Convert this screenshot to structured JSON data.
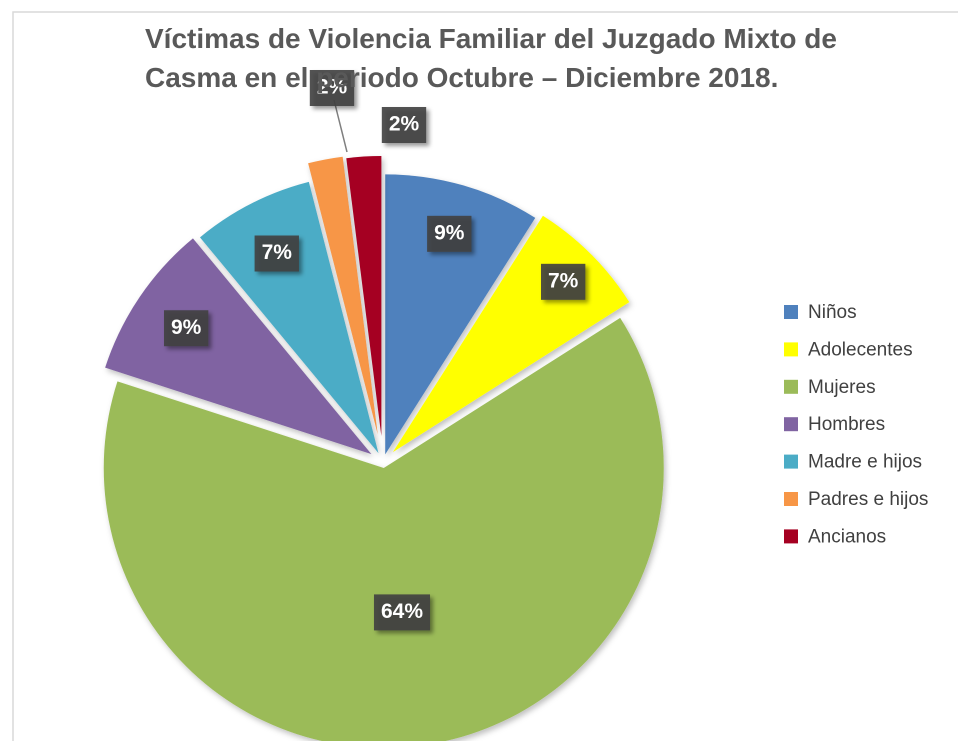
{
  "chart_data": {
    "type": "pie",
    "title": [
      "Víctimas  de Violencia Familiar del Juzgado Mixto de",
      "Casma en el periodo Octubre – Diciembre  2018."
    ],
    "categories": [
      "Niños",
      "Adolecentes",
      "Mujeres",
      "Hombres",
      "Madre e hijos",
      "Padres e hijos",
      "Ancianos"
    ],
    "values": [
      9,
      7,
      64,
      9,
      7,
      2,
      2
    ],
    "value_labels": [
      "9%",
      "7%",
      "64%",
      "9%",
      "7%",
      "2%",
      "2%"
    ],
    "colors": [
      "#4f81bd",
      "#ffff00",
      "#9bbb59",
      "#8064a2",
      "#4bacc6",
      "#f79646",
      "#a50021"
    ],
    "legend": "right"
  }
}
